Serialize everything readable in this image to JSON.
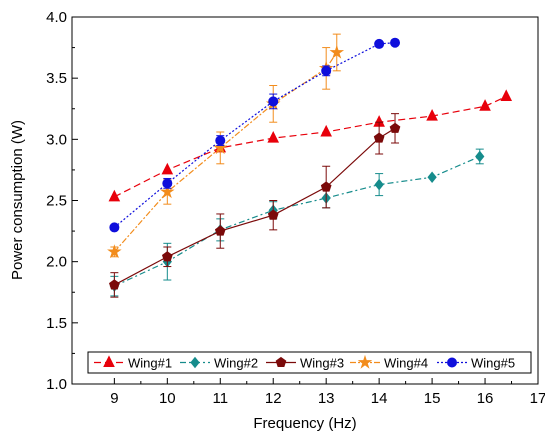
{
  "chart_data": {
    "type": "line",
    "xlabel": "Frequency (Hz)",
    "ylabel": "Power consumption (W)",
    "xlim": [
      8.2,
      17
    ],
    "ylim": [
      1.0,
      4.0
    ],
    "xticks": [
      9,
      10,
      11,
      12,
      13,
      14,
      15,
      16,
      17
    ],
    "yticks": [
      1.0,
      1.5,
      2.0,
      2.5,
      3.0,
      3.5,
      4.0
    ],
    "ytick_labels": [
      "1.0",
      "1.5",
      "2.0",
      "2.5",
      "3.0",
      "3.5",
      "4.0"
    ],
    "legend_position": "bottom",
    "series": [
      {
        "name": "Wing#1",
        "color": "#e8000b",
        "dash": "7,4",
        "marker": "triangle",
        "x": [
          9,
          10,
          11,
          12,
          13,
          14,
          15,
          16,
          16.4
        ],
        "y": [
          2.53,
          2.75,
          2.93,
          3.01,
          3.06,
          3.14,
          3.19,
          3.27,
          3.35
        ],
        "err": [
          0,
          0,
          0,
          0,
          0,
          0,
          0,
          0,
          0
        ]
      },
      {
        "name": "Wing#2",
        "color": "#168c8c",
        "dash": "6,3,2,3",
        "marker": "diamond",
        "x": [
          9,
          10,
          11,
          12,
          13,
          14,
          15,
          15.9
        ],
        "y": [
          1.8,
          2.0,
          2.26,
          2.42,
          2.52,
          2.63,
          2.69,
          2.86
        ],
        "err": [
          0.08,
          0.15,
          0.09,
          0.07,
          0.08,
          0.09,
          0,
          0.06
        ]
      },
      {
        "name": "Wing#3",
        "color": "#7b0a0a",
        "dash": "",
        "marker": "pentagon",
        "x": [
          9,
          10,
          11,
          12,
          13,
          14,
          14.3
        ],
        "y": [
          1.81,
          2.04,
          2.25,
          2.38,
          2.61,
          3.01,
          3.09
        ],
        "err": [
          0.1,
          0.08,
          0.14,
          0.12,
          0.17,
          0.13,
          0.12
        ]
      },
      {
        "name": "Wing#4",
        "color": "#f28c1c",
        "dash": "6,2,2,2",
        "marker": "star",
        "x": [
          9,
          10,
          11,
          12,
          13,
          13.2
        ],
        "y": [
          2.08,
          2.57,
          2.93,
          3.29,
          3.58,
          3.71
        ],
        "err": [
          0.04,
          0.1,
          0.13,
          0.15,
          0.17,
          0.15
        ]
      },
      {
        "name": "Wing#5",
        "color": "#0f0fdc",
        "dash": "2,2",
        "marker": "circle",
        "x": [
          9,
          10,
          11,
          12,
          13,
          14,
          14.3
        ],
        "y": [
          2.28,
          2.64,
          2.99,
          3.31,
          3.56,
          3.78,
          3.79
        ],
        "err": [
          0,
          0.04,
          0.04,
          0.06,
          0.04,
          0.02,
          0
        ]
      }
    ]
  }
}
